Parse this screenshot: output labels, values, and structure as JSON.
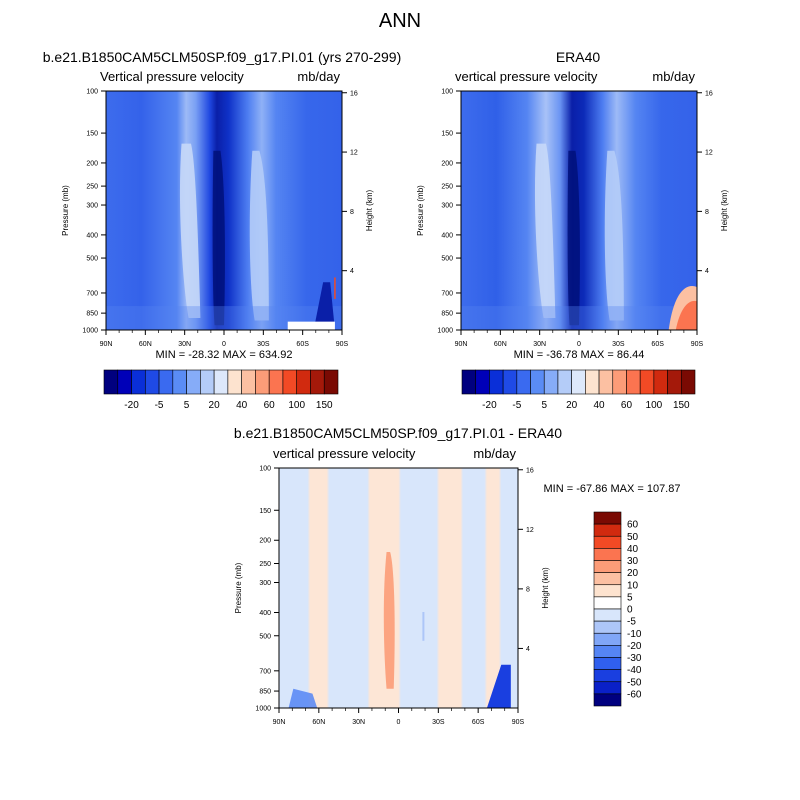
{
  "page": {
    "title": "ANN"
  },
  "colors": {
    "panel_scale": [
      "#00007f",
      "#0000b8",
      "#0a2fd8",
      "#1f4ae6",
      "#3a6af0",
      "#5a8cf5",
      "#86acf8",
      "#b4ccf8",
      "#dde8fb",
      "#fde3cf",
      "#fcc0a2",
      "#fc9c78",
      "#fb7450",
      "#f24a25",
      "#d12a0f",
      "#a4190a",
      "#7a0a03"
    ],
    "diff_scale": [
      "#00007f",
      "#0a20c8",
      "#1a3fe0",
      "#3060ee",
      "#5585f4",
      "#80a6f7",
      "#adc6f8",
      "#d8e6fb",
      "#ffffff",
      "#fde3cf",
      "#fcc0a2",
      "#fc9c78",
      "#fb7450",
      "#f24a25",
      "#d12a0f",
      "#7a0a03"
    ]
  },
  "chart_data": [
    {
      "type": "heatmap",
      "title": "b.e21.B1850CAM5CLM50SP.f09_g17.PI.01 (yrs 270-299)",
      "subtitle_left": "Vertical pressure velocity",
      "subtitle_right": "mb/day",
      "ylabel": "Pressure (mb)",
      "ylabel_right": "Height (km)",
      "x_ticks": [
        "90N",
        "60N",
        "30N",
        "0",
        "30S",
        "60S",
        "90S"
      ],
      "y_ticks": [
        100,
        150,
        200,
        250,
        300,
        400,
        500,
        700,
        850,
        1000
      ],
      "y_right_ticks": [
        16,
        12,
        8,
        4
      ],
      "stats": "MIN = -28.32  MAX = 634.92",
      "colorbar_labels": [
        "-20",
        "-5",
        "5",
        "20",
        "40",
        "60",
        "100",
        "150"
      ]
    },
    {
      "type": "heatmap",
      "title": "ERA40",
      "subtitle_left": "vertical pressure velocity",
      "subtitle_right": "mb/day",
      "ylabel": "Pressure (mb)",
      "ylabel_right": "Height (km)",
      "x_ticks": [
        "90N",
        "60N",
        "30N",
        "0",
        "30S",
        "60S",
        "90S"
      ],
      "y_ticks": [
        100,
        150,
        200,
        250,
        300,
        400,
        500,
        700,
        850,
        1000
      ],
      "y_right_ticks": [
        16,
        12,
        8,
        4
      ],
      "stats": "MIN = -36.78  MAX = 86.44",
      "colorbar_labels": [
        "-20",
        "-5",
        "5",
        "20",
        "40",
        "60",
        "100",
        "150"
      ]
    },
    {
      "type": "heatmap",
      "title": "b.e21.B1850CAM5CLM50SP.f09_g17.PI.01 - ERA40",
      "subtitle_left": "vertical pressure velocity",
      "subtitle_right": "mb/day",
      "ylabel": "Pressure (mb)",
      "ylabel_right": "Height (km)",
      "x_ticks": [
        "90N",
        "60N",
        "30N",
        "0",
        "30S",
        "60S",
        "90S"
      ],
      "y_ticks": [
        100,
        150,
        200,
        250,
        300,
        400,
        500,
        700,
        850,
        1000
      ],
      "y_right_ticks": [
        16,
        12,
        8,
        4
      ],
      "stats": "MIN = -67.86  MAX = 107.87",
      "colorbar_labels": [
        "60",
        "50",
        "40",
        "30",
        "20",
        "10",
        "5",
        "0",
        "-5",
        "-10",
        "-20",
        "-30",
        "-40",
        "-50",
        "-60"
      ]
    }
  ]
}
